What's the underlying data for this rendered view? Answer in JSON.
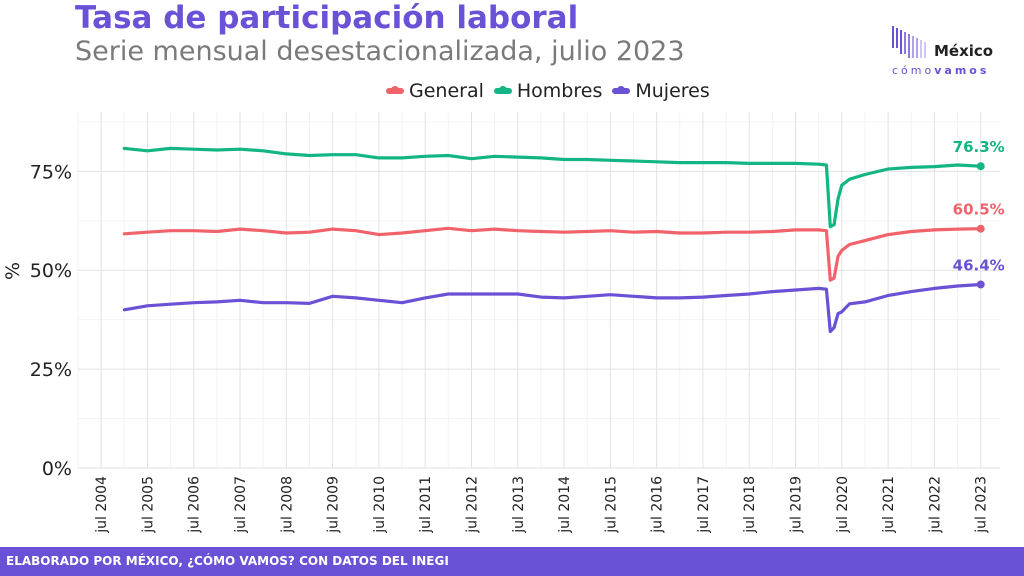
{
  "header": {
    "title": "Tasa de participación laboral",
    "subtitle": "Serie mensual desestacionalizada, julio 2023"
  },
  "logo": {
    "line1": "México",
    "line2_a": "cómo",
    "line2_b": "vamos"
  },
  "footer": {
    "text": "ELABORADO POR MÉXICO, ¿CÓMO VAMOS? CON DATOS DEL INEGI"
  },
  "colors": {
    "accent": "#6a51d6",
    "general": "#f0636a",
    "hombres": "#13b584",
    "mujeres": "#6a51d6"
  },
  "chart_data": {
    "type": "line",
    "title": "Tasa de participación laboral",
    "subtitle": "Serie mensual desestacionalizada, julio 2023",
    "xlabel": "",
    "ylabel": "%",
    "ylim": [
      0,
      90
    ],
    "xlim": [
      "2004-01",
      "2023-12"
    ],
    "y_ticks": [
      0,
      25,
      50,
      75
    ],
    "y_tick_labels": [
      "0%",
      "25%",
      "50%",
      "75%"
    ],
    "x_tick_labels": [
      "jul 2004",
      "jul 2005",
      "jul 2006",
      "jul 2007",
      "jul 2008",
      "jul 2009",
      "jul 2010",
      "jul 2011",
      "jul 2012",
      "jul 2013",
      "jul 2014",
      "jul 2015",
      "jul 2016",
      "jul 2017",
      "jul 2018",
      "jul 2019",
      "jul 2020",
      "jul 2021",
      "jul 2022",
      "jul 2023"
    ],
    "x_ticks": [
      "2004-07",
      "2005-07",
      "2006-07",
      "2007-07",
      "2008-07",
      "2009-07",
      "2010-07",
      "2011-07",
      "2012-07",
      "2013-07",
      "2014-07",
      "2015-07",
      "2016-07",
      "2017-07",
      "2018-07",
      "2019-07",
      "2020-07",
      "2021-07",
      "2022-07",
      "2023-07"
    ],
    "grid": true,
    "legend_position": "top",
    "series": [
      {
        "name": "General",
        "color": "#f0636a",
        "end_label": "60.5%",
        "points": [
          [
            "2005-01",
            59.2
          ],
          [
            "2005-07",
            59.6
          ],
          [
            "2006-01",
            60.0
          ],
          [
            "2006-07",
            60.0
          ],
          [
            "2007-01",
            59.8
          ],
          [
            "2007-07",
            60.4
          ],
          [
            "2008-01",
            60.0
          ],
          [
            "2008-07",
            59.4
          ],
          [
            "2009-01",
            59.6
          ],
          [
            "2009-07",
            60.4
          ],
          [
            "2010-01",
            60.0
          ],
          [
            "2010-07",
            59.0
          ],
          [
            "2011-01",
            59.4
          ],
          [
            "2011-07",
            60.0
          ],
          [
            "2012-01",
            60.6
          ],
          [
            "2012-07",
            60.0
          ],
          [
            "2013-01",
            60.4
          ],
          [
            "2013-07",
            60.0
          ],
          [
            "2014-01",
            59.8
          ],
          [
            "2014-07",
            59.6
          ],
          [
            "2015-01",
            59.8
          ],
          [
            "2015-07",
            60.0
          ],
          [
            "2016-01",
            59.6
          ],
          [
            "2016-07",
            59.8
          ],
          [
            "2017-01",
            59.4
          ],
          [
            "2017-07",
            59.4
          ],
          [
            "2018-01",
            59.6
          ],
          [
            "2018-07",
            59.6
          ],
          [
            "2019-01",
            59.8
          ],
          [
            "2019-07",
            60.2
          ],
          [
            "2020-01",
            60.2
          ],
          [
            "2020-03",
            60.0
          ],
          [
            "2020-04",
            47.5
          ],
          [
            "2020-05",
            48.0
          ],
          [
            "2020-06",
            53.5
          ],
          [
            "2020-07",
            55.0
          ],
          [
            "2020-09",
            56.5
          ],
          [
            "2021-01",
            57.5
          ],
          [
            "2021-07",
            59.0
          ],
          [
            "2022-01",
            59.8
          ],
          [
            "2022-07",
            60.2
          ],
          [
            "2023-01",
            60.4
          ],
          [
            "2023-07",
            60.5
          ]
        ]
      },
      {
        "name": "Hombres",
        "color": "#13b584",
        "end_label": "76.3%",
        "points": [
          [
            "2005-01",
            80.8
          ],
          [
            "2005-07",
            80.2
          ],
          [
            "2006-01",
            80.8
          ],
          [
            "2006-07",
            80.6
          ],
          [
            "2007-01",
            80.4
          ],
          [
            "2007-07",
            80.6
          ],
          [
            "2008-01",
            80.2
          ],
          [
            "2008-07",
            79.4
          ],
          [
            "2009-01",
            79.0
          ],
          [
            "2009-07",
            79.2
          ],
          [
            "2010-01",
            79.2
          ],
          [
            "2010-07",
            78.4
          ],
          [
            "2011-01",
            78.4
          ],
          [
            "2011-07",
            78.8
          ],
          [
            "2012-01",
            79.0
          ],
          [
            "2012-07",
            78.2
          ],
          [
            "2013-01",
            78.8
          ],
          [
            "2013-07",
            78.6
          ],
          [
            "2014-01",
            78.4
          ],
          [
            "2014-07",
            78.0
          ],
          [
            "2015-01",
            78.0
          ],
          [
            "2015-07",
            77.8
          ],
          [
            "2016-01",
            77.6
          ],
          [
            "2016-07",
            77.4
          ],
          [
            "2017-01",
            77.2
          ],
          [
            "2017-07",
            77.2
          ],
          [
            "2018-01",
            77.2
          ],
          [
            "2018-07",
            77.0
          ],
          [
            "2019-01",
            77.0
          ],
          [
            "2019-07",
            77.0
          ],
          [
            "2020-01",
            76.8
          ],
          [
            "2020-03",
            76.6
          ],
          [
            "2020-04",
            61.0
          ],
          [
            "2020-05",
            61.5
          ],
          [
            "2020-06",
            68.0
          ],
          [
            "2020-07",
            71.5
          ],
          [
            "2020-09",
            73.0
          ],
          [
            "2021-01",
            74.2
          ],
          [
            "2021-07",
            75.6
          ],
          [
            "2022-01",
            76.0
          ],
          [
            "2022-07",
            76.2
          ],
          [
            "2023-01",
            76.6
          ],
          [
            "2023-07",
            76.3
          ]
        ]
      },
      {
        "name": "Mujeres",
        "color": "#6a51d6",
        "end_label": "46.4%",
        "points": [
          [
            "2005-01",
            40.0
          ],
          [
            "2005-07",
            41.0
          ],
          [
            "2006-01",
            41.4
          ],
          [
            "2006-07",
            41.8
          ],
          [
            "2007-01",
            42.0
          ],
          [
            "2007-07",
            42.4
          ],
          [
            "2008-01",
            41.8
          ],
          [
            "2008-07",
            41.8
          ],
          [
            "2009-01",
            41.6
          ],
          [
            "2009-07",
            43.4
          ],
          [
            "2010-01",
            43.0
          ],
          [
            "2010-07",
            42.4
          ],
          [
            "2011-01",
            41.8
          ],
          [
            "2011-07",
            43.0
          ],
          [
            "2012-01",
            44.0
          ],
          [
            "2012-07",
            44.0
          ],
          [
            "2013-01",
            44.0
          ],
          [
            "2013-07",
            44.0
          ],
          [
            "2014-01",
            43.2
          ],
          [
            "2014-07",
            43.0
          ],
          [
            "2015-01",
            43.4
          ],
          [
            "2015-07",
            43.8
          ],
          [
            "2016-01",
            43.4
          ],
          [
            "2016-07",
            43.0
          ],
          [
            "2017-01",
            43.0
          ],
          [
            "2017-07",
            43.2
          ],
          [
            "2018-01",
            43.6
          ],
          [
            "2018-07",
            44.0
          ],
          [
            "2019-01",
            44.6
          ],
          [
            "2019-07",
            45.0
          ],
          [
            "2020-01",
            45.4
          ],
          [
            "2020-03",
            45.2
          ],
          [
            "2020-04",
            34.5
          ],
          [
            "2020-05",
            35.5
          ],
          [
            "2020-06",
            39.0
          ],
          [
            "2020-07",
            39.5
          ],
          [
            "2020-09",
            41.5
          ],
          [
            "2021-01",
            42.0
          ],
          [
            "2021-07",
            43.6
          ],
          [
            "2022-01",
            44.6
          ],
          [
            "2022-07",
            45.4
          ],
          [
            "2023-01",
            46.0
          ],
          [
            "2023-07",
            46.4
          ]
        ]
      }
    ]
  }
}
